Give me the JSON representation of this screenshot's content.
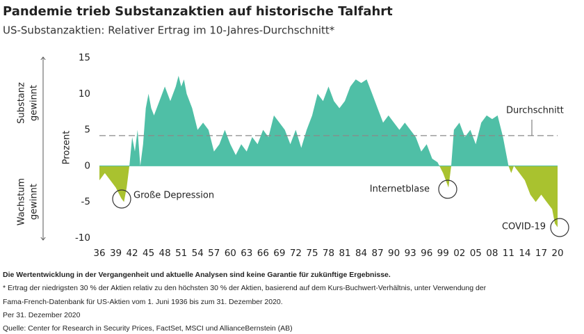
{
  "chart_data": {
    "type": "area",
    "title": "Pandemie trieb Substanzaktien auf historische Talfahrt",
    "subtitle": "US-Substanzaktien: Relativer Ertrag im 10-Jahres-Durchschnitt*",
    "y_label": "Prozent",
    "side_labels": {
      "top": [
        "Substanz",
        "gewinnt"
      ],
      "bottom": [
        "Wachstum",
        "gewinnt"
      ]
    },
    "x": [
      1936,
      1937,
      1938,
      1939,
      1940,
      1940.5,
      1941,
      1941.5,
      1942,
      1942.5,
      1943,
      1943.5,
      1944,
      1944.5,
      1945,
      1945.5,
      1946,
      1947,
      1948,
      1949,
      1950,
      1950.5,
      1951,
      1951.5,
      1952,
      1953,
      1954,
      1955,
      1956,
      1957,
      1958,
      1959,
      1960,
      1961,
      1962,
      1963,
      1964,
      1965,
      1966,
      1967,
      1968,
      1969,
      1970,
      1971,
      1972,
      1973,
      1974,
      1975,
      1976,
      1977,
      1978,
      1979,
      1980,
      1981,
      1982,
      1983,
      1984,
      1985,
      1986,
      1987,
      1988,
      1989,
      1990,
      1991,
      1992,
      1993,
      1994,
      1995,
      1996,
      1997,
      1998,
      1999,
      1999.5,
      2000,
      2000.5,
      2001,
      2002,
      2003,
      2004,
      2005,
      2006,
      2007,
      2008,
      2009,
      2010,
      2011,
      2011.5,
      2012,
      2013,
      2014,
      2015,
      2016,
      2017,
      2018,
      2019,
      2019.5,
      2020
    ],
    "values": [
      -2,
      -1,
      -2,
      -3,
      -4.5,
      -5,
      -3,
      0,
      4,
      2,
      5,
      0,
      3,
      8,
      10,
      8,
      7,
      9,
      11,
      9,
      11,
      12.5,
      11,
      12,
      10,
      8,
      5,
      6,
      5,
      2,
      3,
      5,
      3,
      1.5,
      3,
      2,
      4,
      3,
      5,
      4,
      7,
      6,
      5,
      3,
      5,
      2.5,
      5,
      7,
      10,
      9,
      11,
      9,
      8,
      9,
      11,
      12,
      11.5,
      12,
      10,
      8,
      6,
      7,
      6,
      5,
      6,
      5,
      4,
      2,
      3,
      1,
      0.5,
      -1,
      -2,
      -3,
      0,
      5,
      6,
      4,
      5,
      3,
      6,
      7,
      6.5,
      7,
      4,
      0,
      -1,
      0,
      -1,
      -2,
      -4,
      -5,
      -4,
      -5,
      -6,
      -8,
      -8.5
    ],
    "pos_color": "#4fbfa6",
    "neg_color": "#a9c22f",
    "average": {
      "value": 4.2,
      "label": "Durchschnitt"
    },
    "annotations": [
      "Große Depression",
      "Internetblase",
      "COVID-19"
    ],
    "xlim": [
      1936,
      2020
    ],
    "xticks": [
      {
        "value": 1936,
        "label": "36"
      },
      {
        "value": 1939,
        "label": "39"
      },
      {
        "value": 1942,
        "label": "42"
      },
      {
        "value": 1945,
        "label": "45"
      },
      {
        "value": 1948,
        "label": "48"
      },
      {
        "value": 1951,
        "label": "51"
      },
      {
        "value": 1954,
        "label": "54"
      },
      {
        "value": 1957,
        "label": "57"
      },
      {
        "value": 1960,
        "label": "60"
      },
      {
        "value": 1963,
        "label": "63"
      },
      {
        "value": 1966,
        "label": "66"
      },
      {
        "value": 1969,
        "label": "69"
      },
      {
        "value": 1972,
        "label": "72"
      },
      {
        "value": 1975,
        "label": "75"
      },
      {
        "value": 1978,
        "label": "78"
      },
      {
        "value": 1981,
        "label": "81"
      },
      {
        "value": 1984,
        "label": "84"
      },
      {
        "value": 1987,
        "label": "87"
      },
      {
        "value": 1990,
        "label": "90"
      },
      {
        "value": 1993,
        "label": "93"
      },
      {
        "value": 1996,
        "label": "96"
      },
      {
        "value": 1999,
        "label": "99"
      },
      {
        "value": 2002,
        "label": "02"
      },
      {
        "value": 2005,
        "label": "05"
      },
      {
        "value": 2008,
        "label": "08"
      },
      {
        "value": 2011,
        "label": "11"
      },
      {
        "value": 2014,
        "label": "14"
      },
      {
        "value": 2017,
        "label": "17"
      },
      {
        "value": 2020,
        "label": "20"
      }
    ],
    "ylim": [
      -10,
      15
    ],
    "yticks": [
      15,
      10,
      5,
      0,
      -5,
      -10
    ],
    "notes": [
      "Die Wertentwicklung in der Vergangenheit und aktuelle Analysen sind keine Garantie für zukünftige Ergebnisse.",
      "* Ertrag der niedrigsten 30 % der Aktien relativ zu den höchsten 30 % der Aktien, basierend auf dem Kurs-Buchwert-Verhältnis, unter Verwendung der",
      "Fama-French-Datenbank für US-Aktien vom 1. Juni 1936 bis zum 31. Dezember 2020.",
      "Per 31. Dezember 2020",
      "Quelle: Center for Research in Security Prices, FactSet, MSCI und AllianceBernstein (AB)"
    ]
  }
}
